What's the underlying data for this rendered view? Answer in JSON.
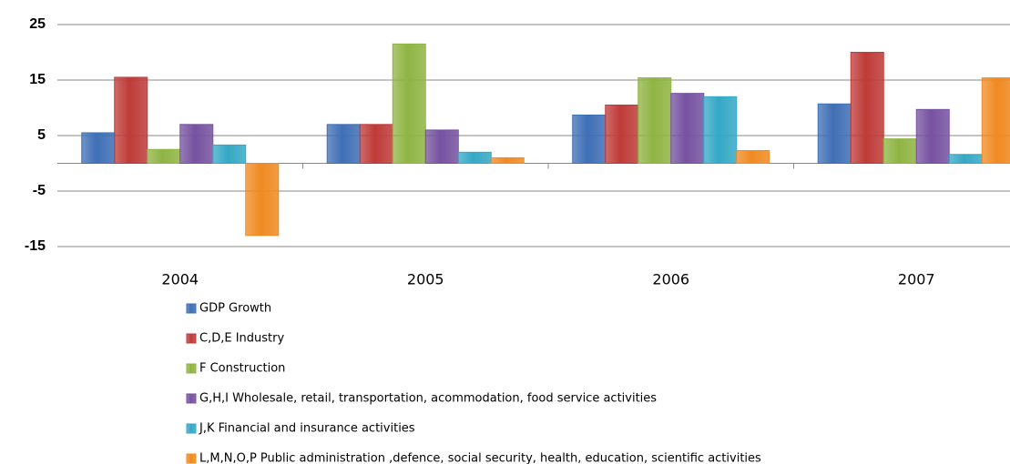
{
  "chart_data": {
    "type": "bar",
    "categories": [
      "2004",
      "2005",
      "2006",
      "2007"
    ],
    "series": [
      {
        "name": "GDP Growth",
        "color": "#3f6fb5",
        "values": [
          5.5,
          7,
          8.7,
          10.7
        ]
      },
      {
        "name": "C,D,E Industry",
        "color": "#be3b38",
        "values": [
          15.5,
          7,
          10.5,
          20
        ]
      },
      {
        "name": "F Construction",
        "color": "#8fb443",
        "values": [
          2.5,
          21.5,
          15.4,
          4.4
        ]
      },
      {
        "name": "G,H,I Wholesale, retail, transportation, acommodation, food service activities",
        "color": "#7652a0",
        "values": [
          7,
          6,
          12.6,
          9.7
        ]
      },
      {
        "name": "J,K Financial and insurance activities",
        "color": "#35a8c5",
        "values": [
          3.3,
          2,
          12,
          1.6
        ]
      },
      {
        "name": "L,M,N,O,P  Public administration ,defence, social security, health, education, scientific activities",
        "color": "#f08a22",
        "values": [
          -13,
          1,
          2.3,
          15.4
        ]
      }
    ],
    "ylim": [
      -15,
      25
    ],
    "yticks": [
      -15,
      -5,
      5,
      15,
      25
    ],
    "grid": true
  }
}
